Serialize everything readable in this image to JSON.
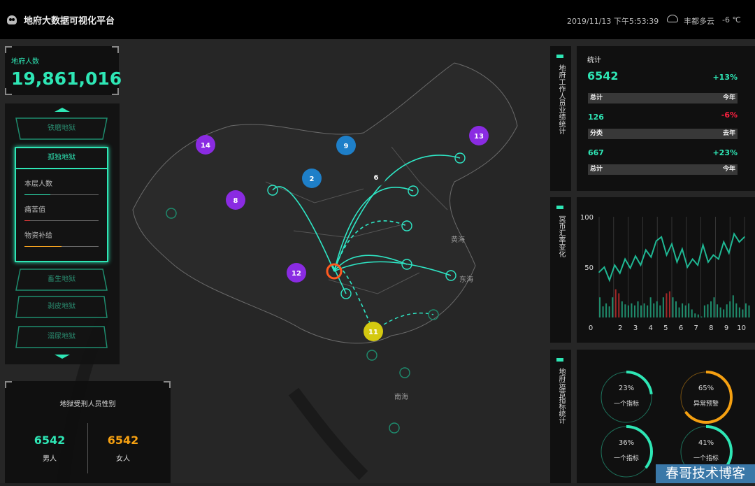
{
  "header": {
    "title": "地府大数据可视化平台",
    "datetime": "2019/11/13 下午5:53:39",
    "weather_icon": "cloud-icon",
    "weather": "丰都多云",
    "temperature": "-6 ℃"
  },
  "population": {
    "label": "地府人数",
    "value": "19,861,016"
  },
  "menu": {
    "items": [
      "铁磨地狱",
      "孤独地狱",
      "畜生地狱",
      "剥皮地狱",
      "溺尿地狱"
    ],
    "active": "孤独地狱",
    "stats": [
      {
        "label": "本层人数",
        "fill": 0.35,
        "color": "#2ee6b5"
      },
      {
        "label": "痛苦值",
        "fill": 0.08,
        "color": "#e03a3a"
      },
      {
        "label": "物资补给",
        "fill": 0.5,
        "color": "#f0a020"
      }
    ]
  },
  "gender": {
    "title": "地狱受刑人员性别",
    "male_value": "6542",
    "male_label": "男人",
    "female_value": "6542",
    "female_label": "女人"
  },
  "map": {
    "sea_labels": [
      "黄海",
      "东海",
      "南海"
    ],
    "markers": [
      "14",
      "9",
      "13",
      "2",
      "6",
      "8",
      "12",
      "11"
    ]
  },
  "sections": {
    "staff": "地府工作人员业绩统计",
    "exchange": "冥币汇率变化",
    "ops": "地府运营指标统计"
  },
  "staff_stats": {
    "label": "统计",
    "big": "6542",
    "big_pct": "+13%",
    "rows": [
      {
        "h_left": "总计",
        "h_right": "今年",
        "value": "126",
        "pct": "-6%",
        "pct_color": "#ff2040"
      },
      {
        "h_left": "分类",
        "h_right": "去年",
        "value": "667",
        "pct": "+23%",
        "pct_color": "#2ee6b5"
      }
    ],
    "last": {
      "h_left": "总计",
      "h_right": "今年"
    }
  },
  "chart_data": {
    "type": "line",
    "ylim": [
      0,
      100
    ],
    "yticks": [
      "100",
      "50"
    ],
    "xticks": [
      "0",
      "2",
      "3",
      "4",
      "5",
      "6",
      "7",
      "8",
      "9",
      "10"
    ],
    "line": [
      45,
      50,
      37,
      52,
      44,
      58,
      49,
      61,
      52,
      67,
      60,
      76,
      80,
      62,
      73,
      55,
      68,
      50,
      58,
      52,
      72,
      55,
      62,
      58,
      75,
      64,
      83,
      75,
      80
    ],
    "bars": [
      20,
      11,
      14,
      11,
      20,
      28,
      24,
      16,
      13,
      12,
      14,
      12,
      16,
      12,
      14,
      12,
      20,
      14,
      16,
      12,
      20,
      24,
      26,
      20,
      16,
      10,
      14,
      12,
      14,
      8,
      4,
      3,
      1,
      12,
      13,
      16,
      20,
      13,
      10,
      8,
      13,
      16,
      22,
      14,
      10,
      8,
      14,
      12
    ],
    "bar_colors": {
      "normal": "#1f8c6c",
      "highlight": "#a02828"
    },
    "highlight_bars": [
      5,
      6,
      21,
      22
    ]
  },
  "gauges": [
    {
      "pct": 23,
      "label": "一个指标",
      "color": "#2ee6b5"
    },
    {
      "pct": 65,
      "label": "异常预警",
      "color": "#f5a011"
    },
    {
      "pct": 36,
      "label": "一个指标",
      "color": "#2ee6b5"
    },
    {
      "pct": 41,
      "label": "一个指标",
      "color": "#2ee6b5"
    }
  ],
  "watermark": "春哥技术博客"
}
